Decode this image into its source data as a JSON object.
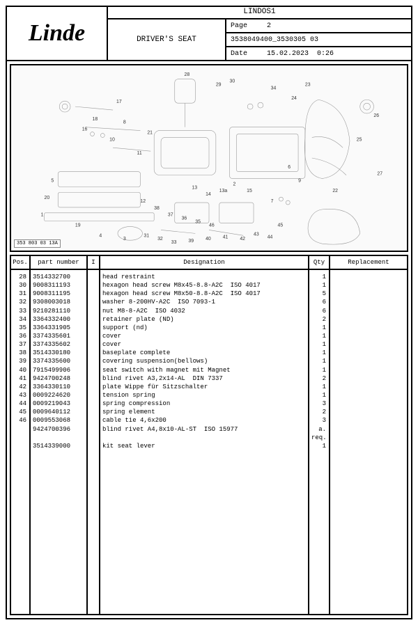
{
  "header": {
    "logo": "Linde",
    "system": "LINDOS1",
    "title": "DRIVER'S SEAT",
    "page_label": "Page",
    "page_num": "2",
    "doc_id": "3538049400_3530305 03",
    "date_label": "Date",
    "date": "15.02.2023",
    "time": "0:26"
  },
  "diagram": {
    "label": "353 803 03 13A",
    "callouts": [
      "28",
      "29",
      "30",
      "34",
      "24",
      "23",
      "26",
      "25",
      "27",
      "22",
      "17",
      "18",
      "16",
      "8",
      "10",
      "11",
      "21",
      "9",
      "6",
      "7",
      "5",
      "20",
      "1",
      "19",
      "4",
      "3",
      "31",
      "32",
      "33",
      "39",
      "40",
      "41",
      "42",
      "43",
      "44",
      "45",
      "13",
      "14",
      "13a",
      "2",
      "15",
      "12",
      "38",
      "37",
      "36",
      "35",
      "46"
    ]
  },
  "table": {
    "headers": {
      "pos": "Pos.",
      "pn": "part number",
      "i": "I",
      "des": "Designation",
      "qty": "Qty",
      "rep": "Replacement"
    },
    "rows": [
      {
        "pos": "28",
        "pn": "3514332700",
        "i": "",
        "des": "head restraint",
        "qty": "1",
        "rep": ""
      },
      {
        "pos": "30",
        "pn": "9008311193",
        "i": "",
        "des": "hexagon head screw M8x45-8.8-A2C  ISO 4017",
        "qty": "1",
        "rep": ""
      },
      {
        "pos": "31",
        "pn": "9008311195",
        "i": "",
        "des": "hexagon head screw M8x50-8.8-A2C  ISO 4017",
        "qty": "5",
        "rep": ""
      },
      {
        "pos": "32",
        "pn": "9308003018",
        "i": "",
        "des": "washer 8-200HV-A2C  ISO 7093-1",
        "qty": "6",
        "rep": ""
      },
      {
        "pos": "33",
        "pn": "9210281110",
        "i": "",
        "des": "nut M8-8-A2C  ISO 4032",
        "qty": "6",
        "rep": ""
      },
      {
        "pos": "34",
        "pn": "3364332400",
        "i": "",
        "des": "retainer plate (ND)",
        "qty": "2",
        "rep": ""
      },
      {
        "pos": "35",
        "pn": "3364331905",
        "i": "",
        "des": "support (nd)",
        "qty": "1",
        "rep": ""
      },
      {
        "pos": "36",
        "pn": "3374335601",
        "i": "",
        "des": "cover",
        "qty": "1",
        "rep": ""
      },
      {
        "pos": "37",
        "pn": "3374335602",
        "i": "",
        "des": "cover",
        "qty": "1",
        "rep": ""
      },
      {
        "pos": "38",
        "pn": "3514330180",
        "i": "",
        "des": "baseplate complete",
        "qty": "1",
        "rep": ""
      },
      {
        "pos": "39",
        "pn": "3374335600",
        "i": "",
        "des": "covering suspension(bellows)",
        "qty": "1",
        "rep": ""
      },
      {
        "pos": "40",
        "pn": "7915499906",
        "i": "",
        "des": "seat switch with magnet mit Magnet",
        "qty": "1",
        "rep": ""
      },
      {
        "pos": "41",
        "pn": "9424700248",
        "i": "",
        "des": "blind rivet A3,2x14-AL  DIN 7337",
        "qty": "2",
        "rep": ""
      },
      {
        "pos": "42",
        "pn": "3364330110",
        "i": "",
        "des": "plate Wippe für Sitzschalter",
        "qty": "1",
        "rep": ""
      },
      {
        "pos": "43",
        "pn": "0009224620",
        "i": "",
        "des": "tension spring",
        "qty": "1",
        "rep": ""
      },
      {
        "pos": "44",
        "pn": "0009219043",
        "i": "",
        "des": "spring compression",
        "qty": "3",
        "rep": ""
      },
      {
        "pos": "45",
        "pn": "0009640112",
        "i": "",
        "des": "spring element",
        "qty": "2",
        "rep": ""
      },
      {
        "pos": "46",
        "pn": "0009553068",
        "i": "",
        "des": "cable tie 4,6x200",
        "qty": "3",
        "rep": ""
      },
      {
        "pos": "",
        "pn": "9424700396",
        "i": "",
        "des": "blind rivet A4,8x10-AL-ST  ISO 15977",
        "qty": "a.",
        "rep": ""
      },
      {
        "pos": "",
        "pn": "",
        "i": "",
        "des": "",
        "qty": "req.",
        "rep": ""
      },
      {
        "pos": "",
        "pn": "3514339000",
        "i": "",
        "des": "kit seat lever",
        "qty": "1",
        "rep": ""
      }
    ]
  }
}
